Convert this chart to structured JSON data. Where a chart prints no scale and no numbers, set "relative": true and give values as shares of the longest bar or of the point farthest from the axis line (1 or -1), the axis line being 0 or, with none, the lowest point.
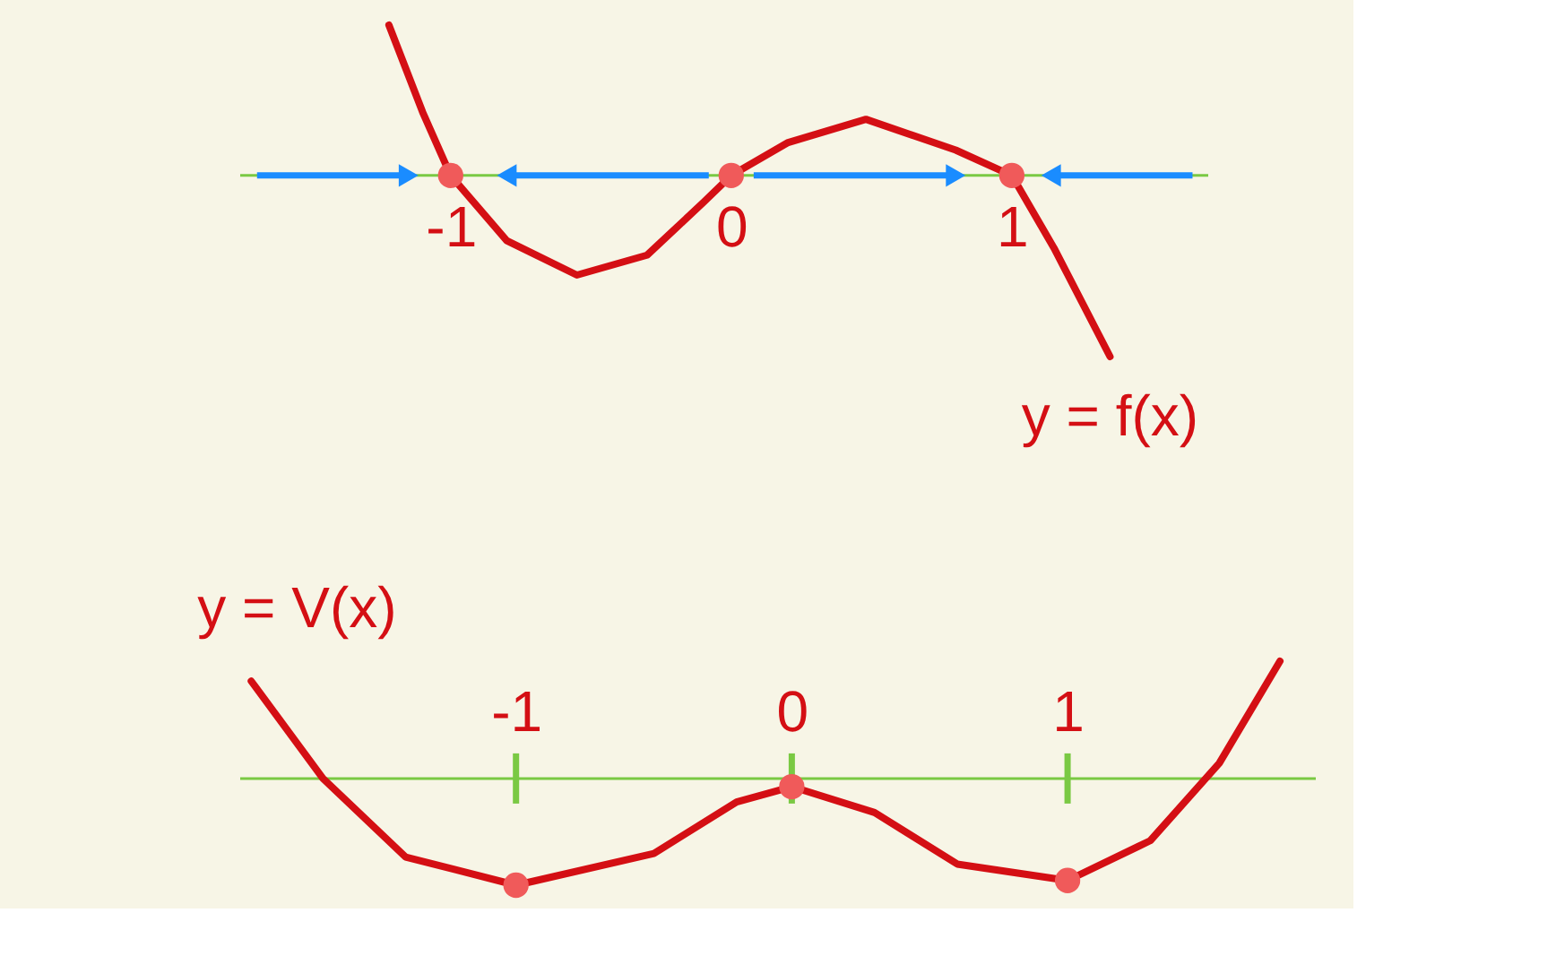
{
  "chart_data": [
    {
      "type": "line",
      "relative": true,
      "xlim": [
        -1.75,
        1.7
      ],
      "xticks": [
        -1,
        0,
        1
      ],
      "tick_labels": "x",
      "marker": "none",
      "line_style": "solid",
      "series": [
        {
          "name": "y = f(x)",
          "color": "#d40f14",
          "x": [
            -1.22,
            -1.1,
            -1.0,
            -0.8,
            -0.55,
            -0.3,
            -0.1,
            0,
            0.2,
            0.48,
            0.8,
            1.0,
            1.15,
            1.35
          ],
          "values": [
            0.83,
            0.35,
            0,
            -0.36,
            -0.55,
            -0.44,
            -0.15,
            0,
            0.18,
            0.31,
            0.14,
            0,
            -0.4,
            -1
          ]
        },
        {
          "type": "scatter",
          "marker": "circle",
          "color": "#f05a5a",
          "x": [
            -1,
            0,
            1
          ],
          "values": [
            0,
            0,
            0
          ]
        }
      ]
    },
    {
      "type": "line",
      "relative": true,
      "xlim": [
        -2.0,
        1.9
      ],
      "xticks": [
        -1,
        0,
        1
      ],
      "tick_labels": "x",
      "marker": "none",
      "line_style": "solid",
      "series": [
        {
          "name": "y = V(x)",
          "color": "#d40f14",
          "x": [
            -1.96,
            -1.7,
            -1.4,
            -1.0,
            -0.5,
            -0.2,
            0,
            0.3,
            0.6,
            1.0,
            1.3,
            1.55,
            1.77
          ],
          "values": [
            0.83,
            0,
            -0.67,
            -0.91,
            -0.64,
            -0.2,
            -0.07,
            -0.29,
            -0.73,
            -0.87,
            -0.53,
            0.13,
            1
          ]
        },
        {
          "type": "scatter",
          "marker": "circle",
          "color": "#f05a5a",
          "x": [
            -1,
            0,
            1
          ],
          "values": [
            -0.91,
            -0.07,
            -0.87
          ]
        }
      ]
    }
  ]
}
